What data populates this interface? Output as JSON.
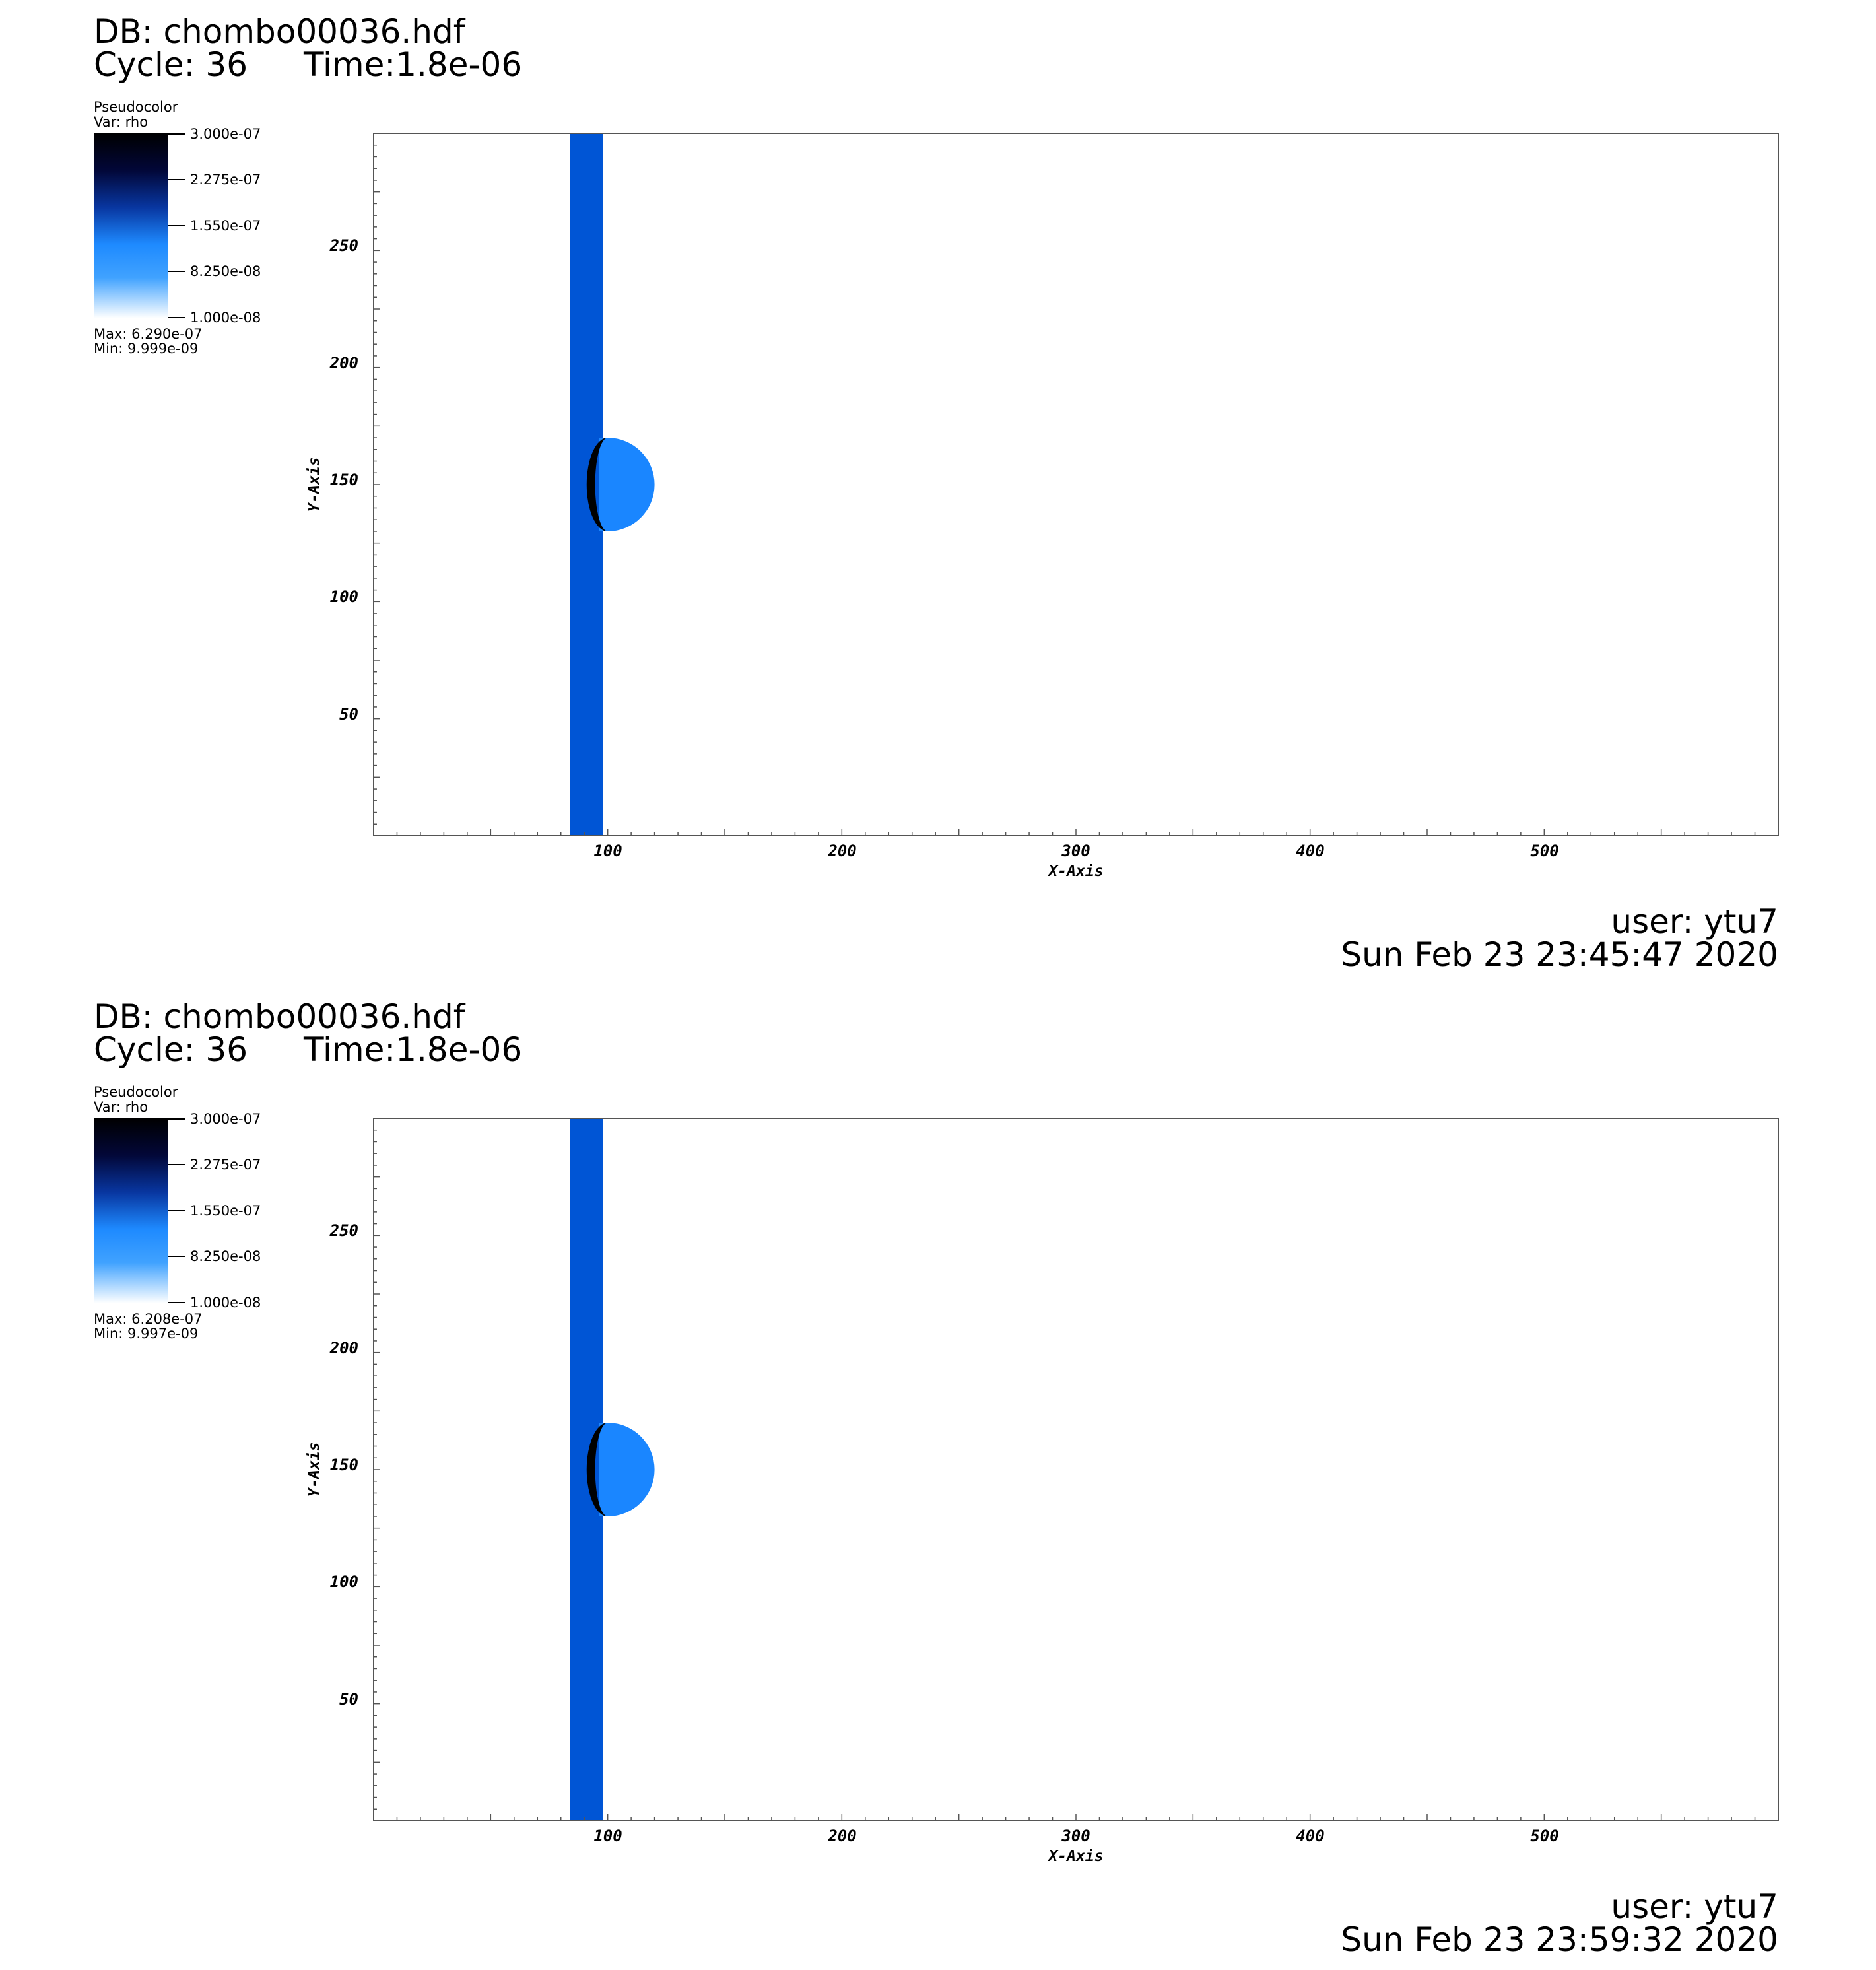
{
  "panels": [
    {
      "db": "DB: chombo00036.hdf",
      "cycle": "Cycle: 36",
      "time": "Time:1.8e-06",
      "legend": {
        "title": "Pseudocolor",
        "var": "Var: rho",
        "ticks": [
          "3.000e-07",
          "2.275e-07",
          "1.550e-07",
          "8.250e-08",
          "1.000e-08"
        ],
        "max": "Max:  6.290e-07",
        "min": "Min:  9.999e-09"
      },
      "plot": {
        "x_label": "X-Axis",
        "y_label": "Y-Axis",
        "x_ticks": [
          "100",
          "200",
          "300",
          "400",
          "500"
        ],
        "y_ticks": [
          "250",
          "200",
          "150",
          "100",
          "50"
        ],
        "x_range": [
          0,
          600
        ],
        "y_range": [
          0,
          300
        ],
        "band_x": [
          84,
          98
        ],
        "band_color": "#0055d5",
        "bubble": {
          "cx": 100,
          "cy": 150,
          "r": 20,
          "color": "#1a86ff",
          "shock_color": "#000000"
        }
      },
      "user": "user: ytu7",
      "date": "Sun Feb 23 23:45:47 2020"
    },
    {
      "db": "DB: chombo00036.hdf",
      "cycle": "Cycle: 36",
      "time": "Time:1.8e-06",
      "legend": {
        "title": "Pseudocolor",
        "var": "Var: rho",
        "ticks": [
          "3.000e-07",
          "2.275e-07",
          "1.550e-07",
          "8.250e-08",
          "1.000e-08"
        ],
        "max": "Max:  6.208e-07",
        "min": "Min:  9.997e-09"
      },
      "plot": {
        "x_label": "X-Axis",
        "y_label": "Y-Axis",
        "x_ticks": [
          "100",
          "200",
          "300",
          "400",
          "500"
        ],
        "y_ticks": [
          "250",
          "200",
          "150",
          "100",
          "50"
        ],
        "x_range": [
          0,
          600
        ],
        "y_range": [
          0,
          300
        ],
        "band_x": [
          84,
          98
        ],
        "band_color": "#0055d5",
        "bubble": {
          "cx": 100,
          "cy": 150,
          "r": 20,
          "color": "#1a86ff",
          "shock_color": "#000000"
        }
      },
      "user": "user: ytu7",
      "date": "Sun Feb 23 23:59:32 2020"
    }
  ]
}
